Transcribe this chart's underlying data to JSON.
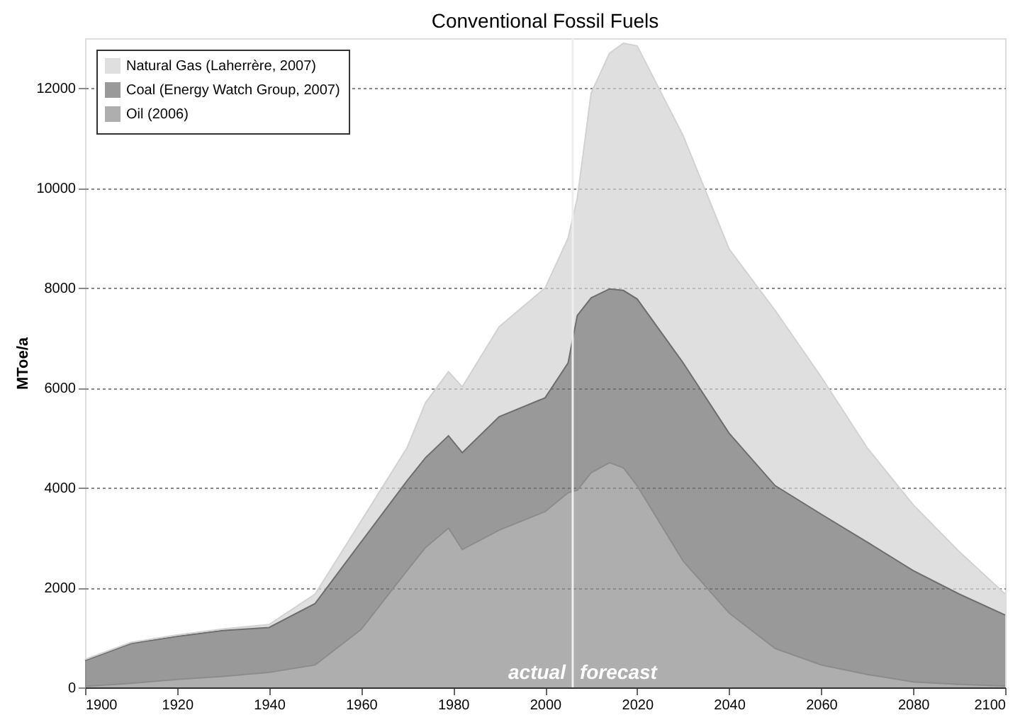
{
  "chart_data": {
    "type": "area",
    "stacked": true,
    "title": "Conventional Fossil Fuels",
    "ylabel": "MToe/a",
    "x": [
      1900,
      1910,
      1920,
      1930,
      1940,
      1950,
      1960,
      1970,
      1974,
      1979,
      1982,
      1990,
      2000,
      2005,
      2007,
      2010,
      2014,
      2017,
      2020,
      2030,
      2040,
      2050,
      2060,
      2070,
      2080,
      2090,
      2100
    ],
    "series": [
      {
        "name": "Oil (2006)",
        "color": "#8c8c8c",
        "values": [
          20,
          80,
          160,
          220,
          300,
          450,
          1160,
          2340,
          2800,
          3190,
          2760,
          3150,
          3520,
          3900,
          3950,
          4300,
          4500,
          4400,
          4040,
          2530,
          1490,
          780,
          450,
          260,
          110,
          60,
          30
        ]
      },
      {
        "name": "Coal (Energy Watch Group, 2007)",
        "color": "#6e6e6e",
        "values": [
          520,
          800,
          860,
          920,
          900,
          1230,
          1750,
          1800,
          1800,
          1850,
          1940,
          2270,
          2280,
          2600,
          3500,
          3500,
          3480,
          3550,
          3740,
          3970,
          3600,
          3260,
          3020,
          2650,
          2230,
          1810,
          1420
        ]
      },
      {
        "name": "Natural Gas (Laherrère, 2007)",
        "color": "#d2d2d2",
        "values": [
          20,
          20,
          30,
          30,
          60,
          190,
          420,
          660,
          1100,
          1280,
          1320,
          1800,
          2200,
          2500,
          2350,
          4100,
          4720,
          4950,
          5070,
          4550,
          3690,
          3510,
          2750,
          1890,
          1320,
          850,
          420
        ]
      }
    ],
    "xlim": [
      1900,
      2100
    ],
    "xticks": [
      1900,
      1920,
      1940,
      1960,
      1980,
      2000,
      2020,
      2040,
      2060,
      2080,
      2100
    ],
    "ylim": [
      0,
      13000
    ],
    "yticks": [
      0,
      2000,
      4000,
      6000,
      8000,
      10000,
      12000
    ],
    "grid": "y",
    "legend": "top left",
    "ref_lines": [
      {
        "axis": "x",
        "value": 2006,
        "color": "#eeeeee"
      }
    ],
    "annotations": [
      "actual",
      "forecast"
    ]
  }
}
